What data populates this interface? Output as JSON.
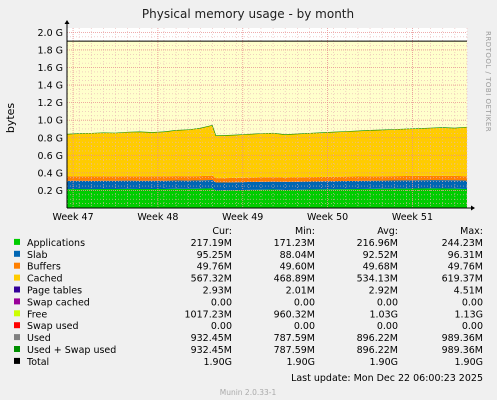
{
  "chart_data": {
    "type": "area",
    "title": "Physical memory usage - by month",
    "ylabel": "bytes",
    "side_label": "RRDTOOL / TOBI OETIKER",
    "y_ticks": [
      "0.2 G",
      "0.4 G",
      "0.6 G",
      "0.8 G",
      "1.0 G",
      "1.2 G",
      "1.4 G",
      "1.6 G",
      "1.8 G",
      "2.0 G"
    ],
    "y_tick_values": [
      0.2,
      0.4,
      0.6,
      0.8,
      1.0,
      1.2,
      1.4,
      1.6,
      1.8,
      2.0
    ],
    "ylim": [
      0,
      2.05
    ],
    "x_ticks": [
      "Week 47",
      "Week 48",
      "Week 49",
      "Week 50",
      "Week 51"
    ],
    "x_tick_positions": [
      0.5,
      7.5,
      14.5,
      21.5,
      28.5
    ],
    "xlim": [
      0,
      33
    ],
    "x": [
      0,
      1,
      2,
      3,
      4,
      5,
      6,
      7,
      8,
      9,
      10,
      11,
      12,
      12.3,
      13,
      14,
      15,
      16,
      17,
      18,
      19,
      20,
      21,
      22,
      23,
      24,
      25,
      26,
      27,
      28,
      29,
      30,
      31,
      32,
      33
    ],
    "series": [
      {
        "name": "Applications",
        "color": "#00cc00",
        "values": [
          0.215,
          0.216,
          0.215,
          0.217,
          0.216,
          0.218,
          0.217,
          0.216,
          0.217,
          0.219,
          0.218,
          0.22,
          0.224,
          0.2,
          0.201,
          0.203,
          0.206,
          0.208,
          0.21,
          0.205,
          0.207,
          0.21,
          0.212,
          0.214,
          0.215,
          0.216,
          0.218,
          0.219,
          0.22,
          0.221,
          0.222,
          0.223,
          0.222,
          0.221,
          0.217
        ]
      },
      {
        "name": "Slab",
        "color": "#0066b3",
        "values": [
          0.094,
          0.094,
          0.094,
          0.094,
          0.094,
          0.094,
          0.094,
          0.094,
          0.094,
          0.094,
          0.094,
          0.094,
          0.095,
          0.09,
          0.09,
          0.09,
          0.09,
          0.09,
          0.09,
          0.092,
          0.092,
          0.092,
          0.092,
          0.092,
          0.092,
          0.093,
          0.093,
          0.093,
          0.093,
          0.094,
          0.094,
          0.094,
          0.095,
          0.095,
          0.095
        ]
      },
      {
        "name": "Buffers",
        "color": "#ff8000",
        "values": [
          0.0497,
          0.0497,
          0.0497,
          0.0497,
          0.0497,
          0.0497,
          0.0497,
          0.0497,
          0.0497,
          0.0497,
          0.0497,
          0.0497,
          0.0497,
          0.0496,
          0.0496,
          0.0496,
          0.0496,
          0.0496,
          0.0496,
          0.0496,
          0.0496,
          0.0496,
          0.0496,
          0.0496,
          0.0497,
          0.0497,
          0.0497,
          0.0497,
          0.0497,
          0.0497,
          0.0497,
          0.0497,
          0.0497,
          0.0497,
          0.0497
        ]
      },
      {
        "name": "Cached",
        "color": "#ffcc00",
        "values": [
          0.483,
          0.488,
          0.493,
          0.497,
          0.495,
          0.503,
          0.507,
          0.501,
          0.507,
          0.523,
          0.53,
          0.546,
          0.574,
          0.485,
          0.486,
          0.49,
          0.495,
          0.5,
          0.503,
          0.49,
          0.495,
          0.5,
          0.505,
          0.51,
          0.515,
          0.52,
          0.525,
          0.528,
          0.532,
          0.536,
          0.54,
          0.545,
          0.55,
          0.545,
          0.56
        ]
      },
      {
        "name": "Page tables",
        "color": "#330099",
        "values": [
          0.0029,
          0.0029,
          0.0029,
          0.0029,
          0.0029,
          0.0029,
          0.0029,
          0.0029,
          0.0029,
          0.0029,
          0.0029,
          0.0029,
          0.0029,
          0.0029,
          0.0029,
          0.0029,
          0.0029,
          0.0029,
          0.0029,
          0.0029,
          0.0029,
          0.0029,
          0.0029,
          0.0029,
          0.0029,
          0.0029,
          0.0029,
          0.0029,
          0.0029,
          0.0029,
          0.0029,
          0.0029,
          0.0029,
          0.0029,
          0.0029
        ]
      },
      {
        "name": "Swap cached",
        "color": "#990099",
        "values": [
          0,
          0,
          0,
          0,
          0,
          0,
          0,
          0,
          0,
          0,
          0,
          0,
          0,
          0,
          0,
          0,
          0,
          0,
          0,
          0,
          0,
          0,
          0,
          0,
          0,
          0,
          0,
          0,
          0,
          0,
          0,
          0,
          0,
          0,
          0
        ]
      },
      {
        "name": "Free",
        "color": "#ffffcc",
        "values": [
          1.055,
          1.05,
          1.045,
          1.04,
          1.042,
          1.033,
          1.03,
          1.037,
          1.03,
          1.013,
          1.007,
          0.988,
          0.954,
          1.074,
          1.072,
          1.065,
          1.057,
          1.05,
          1.045,
          1.062,
          1.055,
          1.048,
          1.04,
          1.032,
          1.026,
          1.018,
          1.011,
          1.007,
          1.002,
          0.996,
          0.992,
          0.985,
          0.98,
          0.986,
          0.974
        ]
      }
    ],
    "lines": [
      {
        "name": "Swap used",
        "color": "#ff0000",
        "value": 0
      },
      {
        "name": "Total",
        "color": "#000000",
        "value": 1.9
      }
    ],
    "legend": {
      "headers": [
        "Cur:",
        "Min:",
        "Avg:",
        "Max:"
      ],
      "rows": [
        {
          "name": "Applications",
          "color": "#00cc00",
          "cur": "217.19M",
          "min": "171.23M",
          "avg": "216.96M",
          "max": "244.23M"
        },
        {
          "name": "Slab",
          "color": "#0066b3",
          "cur": "95.25M",
          "min": "88.04M",
          "avg": "92.52M",
          "max": "96.31M"
        },
        {
          "name": "Buffers",
          "color": "#ff8000",
          "cur": "49.76M",
          "min": "49.60M",
          "avg": "49.68M",
          "max": "49.76M"
        },
        {
          "name": "Cached",
          "color": "#ffcc00",
          "cur": "567.32M",
          "min": "468.89M",
          "avg": "534.13M",
          "max": "619.37M"
        },
        {
          "name": "Page tables",
          "color": "#330099",
          "cur": "2.93M",
          "min": "2.01M",
          "avg": "2.92M",
          "max": "4.51M"
        },
        {
          "name": "Swap cached",
          "color": "#990099",
          "cur": "0.00",
          "min": "0.00",
          "avg": "0.00",
          "max": "0.00"
        },
        {
          "name": "Free",
          "color": "#ccff00",
          "cur": "1017.23M",
          "min": "960.32M",
          "avg": "1.03G",
          "max": "1.13G"
        },
        {
          "name": "Swap used",
          "color": "#ff0000",
          "cur": "0.00",
          "min": "0.00",
          "avg": "0.00",
          "max": "0.00"
        },
        {
          "name": "Used",
          "color": "#808080",
          "cur": "932.45M",
          "min": "787.59M",
          "avg": "896.22M",
          "max": "989.36M"
        },
        {
          "name": "Used + Swap used",
          "color": "#008f00",
          "cur": "932.45M",
          "min": "787.59M",
          "avg": "896.22M",
          "max": "989.36M"
        },
        {
          "name": "Total",
          "color": "#000000",
          "cur": "1.90G",
          "min": "1.90G",
          "avg": "1.90G",
          "max": "1.90G"
        }
      ]
    },
    "last_update": "Last update:  Mon Dec 22 06:00:23 2025",
    "footer": "Munin 2.0.33-1"
  }
}
